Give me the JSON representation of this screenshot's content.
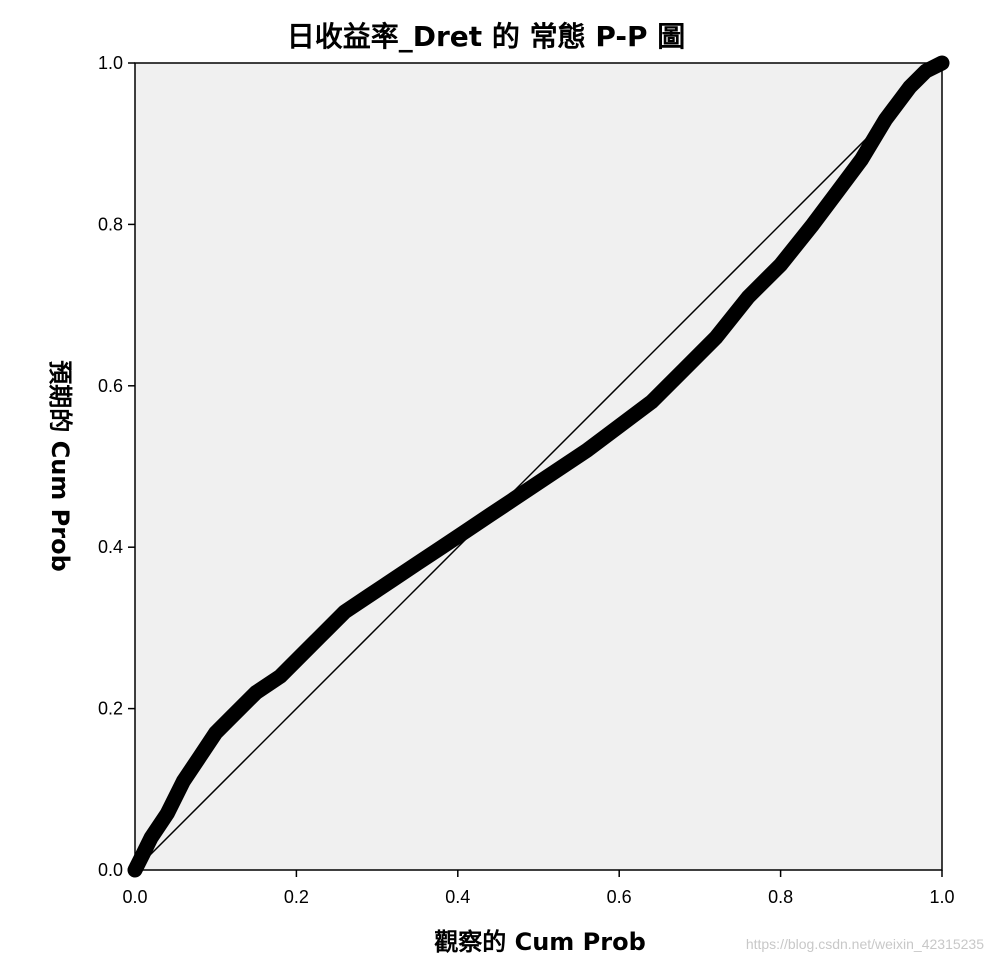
{
  "chart_data": {
    "type": "line",
    "title": "日收益率_Dret 的 常態 P-P 圖",
    "xlabel": "觀察的 Cum Prob",
    "ylabel": "預期的 Cum Prob",
    "xlim": [
      0.0,
      1.0
    ],
    "ylim": [
      0.0,
      1.0
    ],
    "xticks": [
      "0.0",
      "0.2",
      "0.4",
      "0.6",
      "0.8",
      "1.0"
    ],
    "yticks": [
      "0.0",
      "0.2",
      "0.4",
      "0.6",
      "0.8",
      "1.0"
    ],
    "grid": false,
    "plot_background": "#f0f0f0",
    "series": [
      {
        "values": [
          [
            0.0,
            0.0
          ],
          [
            0.01,
            0.02
          ],
          [
            0.02,
            0.04
          ],
          [
            0.04,
            0.07
          ],
          [
            0.06,
            0.11
          ],
          [
            0.08,
            0.14
          ],
          [
            0.1,
            0.17
          ],
          [
            0.12,
            0.19
          ],
          [
            0.15,
            0.22
          ],
          [
            0.18,
            0.24
          ],
          [
            0.2,
            0.26
          ],
          [
            0.23,
            0.29
          ],
          [
            0.26,
            0.32
          ],
          [
            0.29,
            0.34
          ],
          [
            0.32,
            0.36
          ],
          [
            0.35,
            0.38
          ],
          [
            0.38,
            0.4
          ],
          [
            0.41,
            0.42
          ],
          [
            0.44,
            0.44
          ],
          [
            0.47,
            0.46
          ],
          [
            0.5,
            0.48
          ],
          [
            0.53,
            0.5
          ],
          [
            0.56,
            0.52
          ],
          [
            0.6,
            0.55
          ],
          [
            0.64,
            0.58
          ],
          [
            0.68,
            0.62
          ],
          [
            0.72,
            0.66
          ],
          [
            0.76,
            0.71
          ],
          [
            0.8,
            0.75
          ],
          [
            0.84,
            0.8
          ],
          [
            0.87,
            0.84
          ],
          [
            0.9,
            0.88
          ],
          [
            0.93,
            0.93
          ],
          [
            0.96,
            0.97
          ],
          [
            0.98,
            0.99
          ],
          [
            1.0,
            1.0
          ]
        ],
        "color": "#000000"
      },
      {
        "values": [
          [
            0.0,
            0.0
          ],
          [
            1.0,
            1.0
          ]
        ],
        "color": "#000000"
      }
    ]
  },
  "watermark": "https://blog.csdn.net/weixin_42315235"
}
